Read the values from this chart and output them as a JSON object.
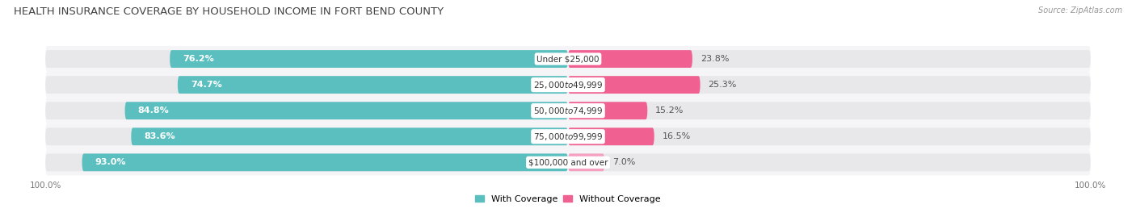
{
  "title": "HEALTH INSURANCE COVERAGE BY HOUSEHOLD INCOME IN FORT BEND COUNTY",
  "source": "Source: ZipAtlas.com",
  "categories": [
    "Under $25,000",
    "$25,000 to $49,999",
    "$50,000 to $74,999",
    "$75,000 to $99,999",
    "$100,000 and over"
  ],
  "with_coverage": [
    76.2,
    74.7,
    84.8,
    83.6,
    93.0
  ],
  "without_coverage": [
    23.8,
    25.3,
    15.2,
    16.5,
    7.0
  ],
  "color_with": "#5bbfbf",
  "color_without": "#f06090",
  "color_without_last": "#f5a0c0",
  "bar_bg_color": "#e8e8ea",
  "row_bg_color": "#f5f5f7",
  "background_color": "#ffffff",
  "title_fontsize": 9.5,
  "bar_label_fontsize": 8,
  "cat_label_fontsize": 7.5,
  "legend_fontsize": 8,
  "source_fontsize": 7,
  "axis_label_fontsize": 7.5,
  "bar_height": 0.68,
  "bar_rounding": 0.35
}
